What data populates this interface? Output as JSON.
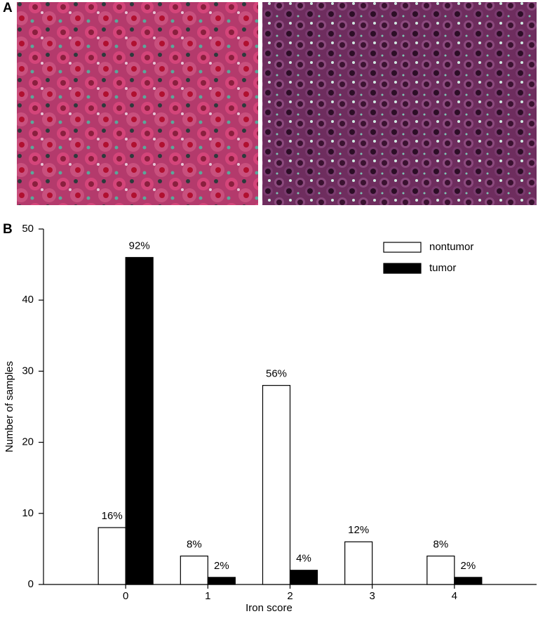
{
  "panel_labels": [
    "A",
    "B"
  ],
  "chart_data": {
    "type": "bar",
    "x_label": "Iron score",
    "y_label": "Number of samples",
    "categories": [
      "0",
      "1",
      "2",
      "3",
      "4"
    ],
    "series": [
      {
        "name": "nontumor",
        "color": "#ffffff",
        "values": [
          8,
          4,
          28,
          6,
          4
        ],
        "pct_labels": [
          "16%",
          "8%",
          "56%",
          "12%",
          "8%"
        ]
      },
      {
        "name": "tumor",
        "color": "#000000",
        "values": [
          46,
          1,
          2,
          0,
          1
        ],
        "pct_labels": [
          "92%",
          "2%",
          "4%",
          null,
          "2%"
        ]
      }
    ],
    "ylim": [
      0,
      50
    ],
    "yticks": [
      0,
      10,
      20,
      30,
      40,
      50
    ],
    "legend": "upper right",
    "grid": false
  }
}
